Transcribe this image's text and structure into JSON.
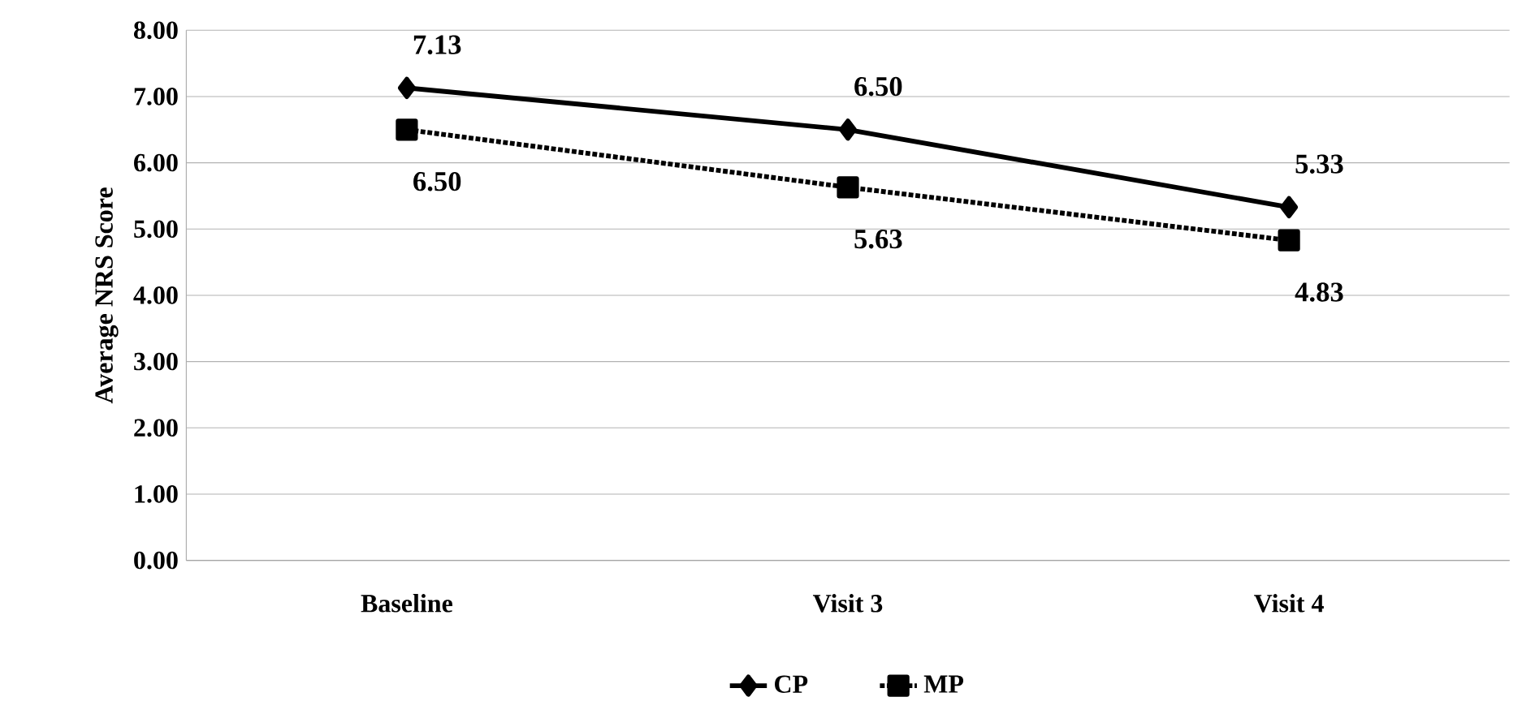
{
  "chart_data": {
    "type": "line",
    "ylabel": "Average NRS Score",
    "categories": [
      "Baseline",
      "Visit 3",
      "Visit 4"
    ],
    "series": [
      {
        "name": "CP",
        "color": "#000000",
        "values": [
          7.13,
          6.5,
          5.33
        ],
        "value_labels": [
          "7.13",
          "6.50",
          "5.33"
        ],
        "marker": "diamond",
        "line_style": "solid"
      },
      {
        "name": "MP",
        "color": "#000000",
        "values": [
          6.5,
          5.63,
          4.83
        ],
        "value_labels": [
          "6.50",
          "5.63",
          "4.83"
        ],
        "marker": "square",
        "line_style": "dotted"
      }
    ],
    "ylim": [
      0,
      8
    ],
    "yticks": [
      {
        "value": 0,
        "label": "0.00"
      },
      {
        "value": 1,
        "label": "1.00"
      },
      {
        "value": 2,
        "label": "2.00"
      },
      {
        "value": 3,
        "label": "3.00"
      },
      {
        "value": 4,
        "label": "4.00"
      },
      {
        "value": 5,
        "label": "5.00"
      },
      {
        "value": 6,
        "label": "6.00"
      },
      {
        "value": 7,
        "label": "7.00"
      },
      {
        "value": 8,
        "label": "8.00"
      }
    ],
    "grid": "y",
    "legend": "bottom"
  }
}
